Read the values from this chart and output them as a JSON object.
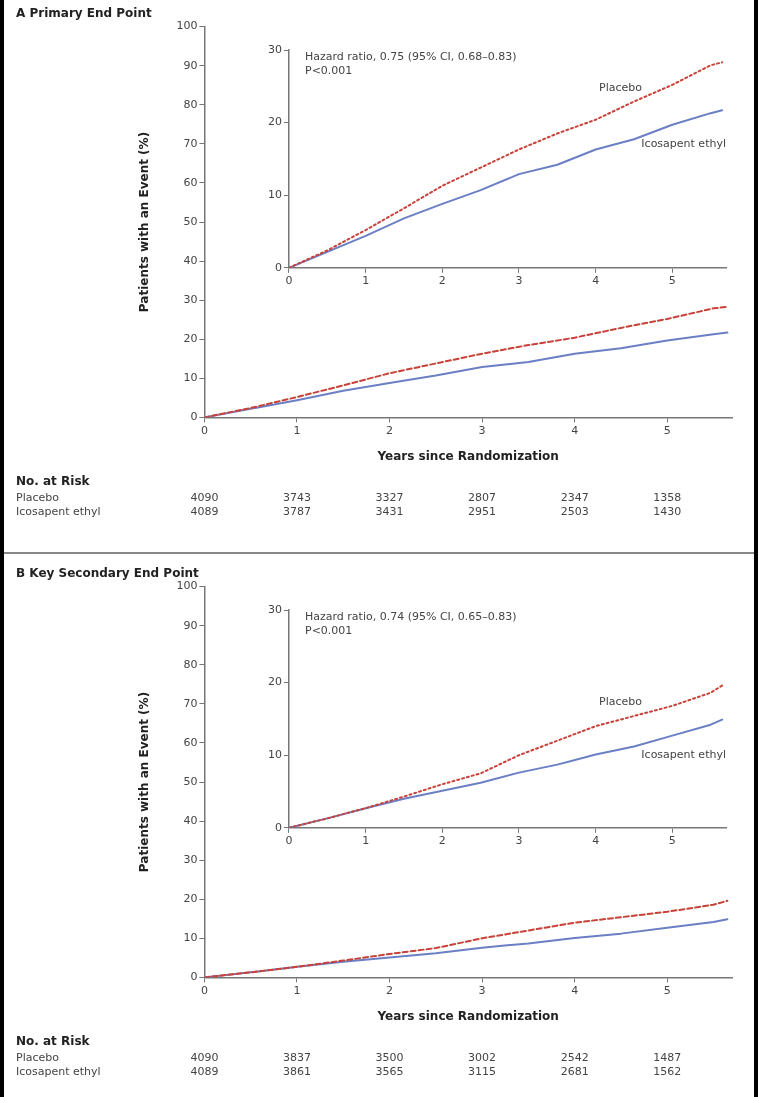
{
  "chart_data": [
    {
      "type": "line",
      "title": "A  Primary End Point",
      "xlabel": "Years since Randomization",
      "ylabel": "Patients with an Event (%)",
      "x": [
        0,
        0.5,
        1,
        1.5,
        2,
        2.5,
        3,
        3.5,
        4,
        4.5,
        5,
        5.5,
        5.65
      ],
      "series": [
        {
          "color": "#c8423a",
          "line_style": "dashed",
          "values": [
            0,
            2.4,
            5.2,
            8.2,
            11.3,
            13.8,
            16.3,
            18.5,
            20.4,
            22.9,
            25.2,
            27.9,
            28.3
          ]
        },
        {
          "color": "#6b7fc4",
          "line_style": "solid",
          "values": [
            0,
            2.2,
            4.4,
            6.8,
            8.8,
            10.7,
            12.9,
            14.2,
            16.3,
            17.7,
            19.7,
            21.3,
            21.7
          ]
        }
      ],
      "xlim": [
        0,
        5.7
      ],
      "xticks": [
        0,
        1,
        2,
        3,
        4,
        5
      ],
      "ylim": [
        0,
        100
      ],
      "yticks": [
        0,
        10,
        20,
        30,
        40,
        50,
        60,
        70,
        80,
        90,
        100
      ],
      "grid": false,
      "legend": false,
      "marker": "none",
      "annotations": [
        "No. at Risk",
        "Placebo",
        "4090",
        "3743",
        "3327",
        "2807",
        "2347",
        "1358",
        "Icosapent ethyl",
        "4089",
        "3787",
        "3431",
        "2951",
        "2503",
        "1430"
      ]
    },
    {
      "type": "line",
      "x": [
        0,
        0.5,
        1,
        1.5,
        2,
        2.5,
        3,
        3.5,
        4,
        4.5,
        5,
        5.5,
        5.65
      ],
      "series": [
        {
          "name": "Placebo",
          "color": "#c8423a",
          "line_style": "dotted",
          "values": [
            0,
            2.4,
            5.2,
            8.2,
            11.3,
            13.8,
            16.3,
            18.5,
            20.4,
            22.9,
            25.2,
            27.9,
            28.3
          ]
        },
        {
          "name": "Icosapent ethyl",
          "color": "#6b7fc4",
          "line_style": "solid",
          "values": [
            0,
            2.2,
            4.4,
            6.8,
            8.8,
            10.7,
            12.9,
            14.2,
            16.3,
            17.7,
            19.7,
            21.3,
            21.7
          ]
        }
      ],
      "xlim": [
        0,
        5.7
      ],
      "xticks": [
        0,
        1,
        2,
        3,
        4,
        5
      ],
      "ylim": [
        0,
        30
      ],
      "yticks": [
        0,
        10,
        20,
        30
      ],
      "grid": false,
      "legend": false,
      "marker": "none",
      "annotations": [
        "Hazard ratio, 0.75 (95% CI, 0.68–0.83)",
        "P<0.001"
      ]
    },
    {
      "type": "line",
      "title": "B  Key Secondary End Point",
      "xlabel": "Years since Randomization",
      "ylabel": "Patients with an Event (%)",
      "x": [
        0,
        0.5,
        1,
        1.5,
        2,
        2.5,
        3,
        3.5,
        4,
        4.5,
        5,
        5.5,
        5.65
      ],
      "series": [
        {
          "color": "#c8423a",
          "line_style": "dashed",
          "values": [
            0,
            1.3,
            2.7,
            4.3,
            6.0,
            7.5,
            10.0,
            12.0,
            14.0,
            15.4,
            16.8,
            18.6,
            19.6
          ]
        },
        {
          "color": "#6b7fc4",
          "line_style": "solid",
          "values": [
            0,
            1.3,
            2.7,
            4.0,
            5.1,
            6.2,
            7.6,
            8.7,
            10.1,
            11.2,
            12.7,
            14.2,
            14.9
          ]
        }
      ],
      "xlim": [
        0,
        5.7
      ],
      "xticks": [
        0,
        1,
        2,
        3,
        4,
        5
      ],
      "ylim": [
        0,
        100
      ],
      "yticks": [
        0,
        10,
        20,
        30,
        40,
        50,
        60,
        70,
        80,
        90,
        100
      ],
      "grid": false,
      "legend": false,
      "marker": "none",
      "annotations": [
        "No. at Risk",
        "Placebo",
        "4090",
        "3837",
        "3500",
        "3002",
        "2542",
        "1487",
        "Icosapent ethyl",
        "4089",
        "3861",
        "3565",
        "3115",
        "2681",
        "1562"
      ]
    },
    {
      "type": "line",
      "x": [
        0,
        0.5,
        1,
        1.5,
        2,
        2.5,
        3,
        3.5,
        4,
        4.5,
        5,
        5.5,
        5.65
      ],
      "series": [
        {
          "name": "Placebo",
          "color": "#c8423a",
          "line_style": "dotted",
          "values": [
            0,
            1.3,
            2.7,
            4.3,
            6.0,
            7.5,
            10.0,
            12.0,
            14.0,
            15.4,
            16.8,
            18.6,
            19.6
          ]
        },
        {
          "name": "Icosapent ethyl",
          "color": "#6b7fc4",
          "line_style": "solid",
          "values": [
            0,
            1.3,
            2.7,
            4.0,
            5.1,
            6.2,
            7.6,
            8.7,
            10.1,
            11.2,
            12.7,
            14.2,
            14.9
          ]
        }
      ],
      "xlim": [
        0,
        5.7
      ],
      "xticks": [
        0,
        1,
        2,
        3,
        4,
        5
      ],
      "ylim": [
        0,
        30
      ],
      "yticks": [
        0,
        10,
        20,
        30
      ],
      "grid": false,
      "legend": false,
      "marker": "none",
      "annotations": [
        "Hazard ratio, 0.74 (95% CI, 0.65–0.83)",
        "P<0.001"
      ]
    }
  ]
}
